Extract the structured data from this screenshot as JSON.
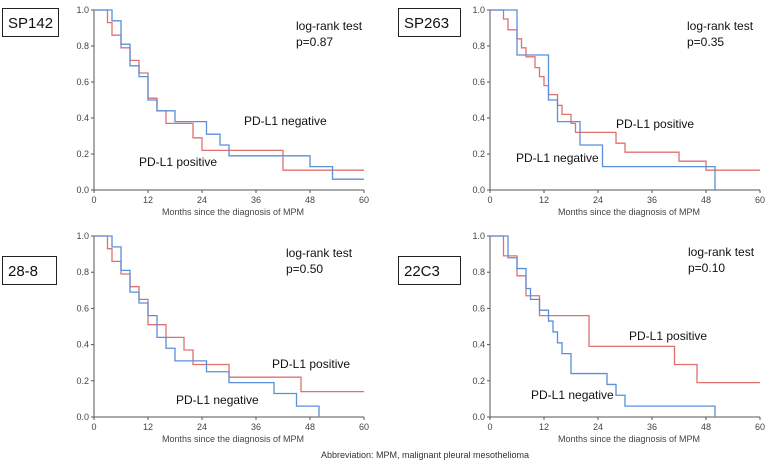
{
  "colors": {
    "positive": "#e07070",
    "negative": "#5b8fd9",
    "axis": "#555555"
  },
  "footer": "Abbreviation:  MPM, malignant pleural mesothelioma",
  "chart_data": [
    {
      "type": "line",
      "title": "SP142",
      "xlabel": "Months since the diagnosis of MPM",
      "ylabel": "",
      "xlim": [
        0,
        60
      ],
      "ylim": [
        0,
        1.0
      ],
      "xticks": [
        0,
        12,
        24,
        36,
        48,
        60
      ],
      "yticks": [
        "0.0",
        "0.2",
        "0.4",
        "0.6",
        "0.8",
        "1.0"
      ],
      "stat_title": "log-rank test",
      "p_value": "p=0.87",
      "series": [
        {
          "name": "PD-L1 positive",
          "color": "#e07070",
          "x": [
            0,
            3,
            4,
            6,
            8,
            10,
            12,
            14,
            16,
            18,
            22,
            24,
            30,
            36,
            42,
            60
          ],
          "y": [
            1.0,
            0.93,
            0.86,
            0.79,
            0.72,
            0.65,
            0.51,
            0.44,
            0.37,
            0.37,
            0.29,
            0.22,
            0.22,
            0.22,
            0.11,
            0.11
          ]
        },
        {
          "name": "PD-L1 negative",
          "color": "#5b8fd9",
          "x": [
            0,
            3,
            4,
            6,
            8,
            10,
            12,
            14,
            16,
            18,
            25,
            28,
            30,
            42,
            48,
            53,
            60
          ],
          "y": [
            1.0,
            1.0,
            0.94,
            0.81,
            0.69,
            0.63,
            0.5,
            0.44,
            0.44,
            0.38,
            0.31,
            0.25,
            0.19,
            0.19,
            0.13,
            0.06,
            0.06
          ]
        }
      ]
    },
    {
      "type": "line",
      "title": "SP263",
      "xlabel": "Months since the diagnosis of MPM",
      "ylabel": "",
      "xlim": [
        0,
        60
      ],
      "ylim": [
        0,
        1.0
      ],
      "xticks": [
        0,
        12,
        24,
        36,
        48,
        60
      ],
      "yticks": [
        "0.0",
        "0.2",
        "0.4",
        "0.6",
        "0.8",
        "1.0"
      ],
      "stat_title": "log-rank test",
      "p_value": "p=0.35",
      "series": [
        {
          "name": "PD-L1 positive",
          "color": "#e07070",
          "x": [
            0,
            3,
            4,
            6,
            7,
            8,
            10,
            11,
            12,
            13,
            14,
            15,
            16,
            17,
            18,
            19,
            20,
            22,
            24,
            28,
            30,
            36,
            42,
            48,
            52,
            60
          ],
          "y": [
            1.0,
            0.95,
            0.89,
            0.84,
            0.79,
            0.74,
            0.68,
            0.63,
            0.58,
            0.53,
            0.53,
            0.47,
            0.42,
            0.42,
            0.37,
            0.32,
            0.32,
            0.32,
            0.32,
            0.26,
            0.21,
            0.21,
            0.16,
            0.11,
            0.11,
            0.11
          ]
        },
        {
          "name": "PD-L1 negative",
          "color": "#5b8fd9",
          "x": [
            0,
            5,
            6,
            13,
            15,
            20,
            25,
            36,
            48,
            50,
            50
          ],
          "y": [
            1.0,
            1.0,
            0.75,
            0.5,
            0.38,
            0.25,
            0.13,
            0.13,
            0.13,
            0.13,
            0.0
          ]
        }
      ]
    },
    {
      "type": "line",
      "title": "28-8",
      "xlabel": "Months since the diagnosis of MPM",
      "ylabel": "",
      "xlim": [
        0,
        60
      ],
      "ylim": [
        0,
        1.0
      ],
      "xticks": [
        0,
        12,
        24,
        36,
        48,
        60
      ],
      "yticks": [
        "0.0",
        "0.2",
        "0.4",
        "0.6",
        "0.8",
        "1.0"
      ],
      "stat_title": "log-rank test",
      "p_value": "p=0.50",
      "series": [
        {
          "name": "PD-L1 positive",
          "color": "#e07070",
          "x": [
            0,
            3,
            4,
            6,
            8,
            10,
            12,
            14,
            16,
            20,
            22,
            24,
            28,
            30,
            36,
            42,
            46,
            60
          ],
          "y": [
            1.0,
            0.93,
            0.86,
            0.79,
            0.72,
            0.65,
            0.51,
            0.51,
            0.44,
            0.37,
            0.29,
            0.29,
            0.29,
            0.22,
            0.22,
            0.22,
            0.14,
            0.14
          ]
        },
        {
          "name": "PD-L1 negative",
          "color": "#5b8fd9",
          "x": [
            0,
            3,
            4,
            6,
            8,
            10,
            12,
            14,
            16,
            18,
            22,
            25,
            30,
            40,
            45,
            50,
            50
          ],
          "y": [
            1.0,
            1.0,
            0.94,
            0.81,
            0.69,
            0.63,
            0.56,
            0.44,
            0.38,
            0.31,
            0.31,
            0.25,
            0.19,
            0.13,
            0.06,
            0.06,
            0.0
          ]
        }
      ]
    },
    {
      "type": "line",
      "title": "22C3",
      "xlabel": "Months since the diagnosis of MPM",
      "ylabel": "",
      "xlim": [
        0,
        60
      ],
      "ylim": [
        0,
        1.0
      ],
      "xticks": [
        0,
        12,
        24,
        36,
        48,
        60
      ],
      "yticks": [
        "0.0",
        "0.2",
        "0.4",
        "0.6",
        "0.8",
        "1.0"
      ],
      "stat_title": "log-rank test",
      "p_value": "p=0.10",
      "series": [
        {
          "name": "PD-L1 positive",
          "color": "#e07070",
          "x": [
            0,
            3,
            6,
            8,
            11,
            12,
            16,
            22,
            36,
            41,
            46,
            60
          ],
          "y": [
            1.0,
            0.89,
            0.78,
            0.67,
            0.56,
            0.56,
            0.56,
            0.39,
            0.39,
            0.29,
            0.19,
            0.19
          ]
        },
        {
          "name": "PD-L1 negative",
          "color": "#5b8fd9",
          "x": [
            0,
            4,
            6,
            8,
            9,
            11,
            13,
            14,
            15,
            16,
            18,
            24,
            26,
            28,
            30,
            36,
            50,
            50
          ],
          "y": [
            1.0,
            0.88,
            0.82,
            0.71,
            0.65,
            0.59,
            0.53,
            0.47,
            0.41,
            0.35,
            0.24,
            0.24,
            0.18,
            0.12,
            0.06,
            0.06,
            0.06,
            0.0
          ]
        }
      ]
    }
  ]
}
